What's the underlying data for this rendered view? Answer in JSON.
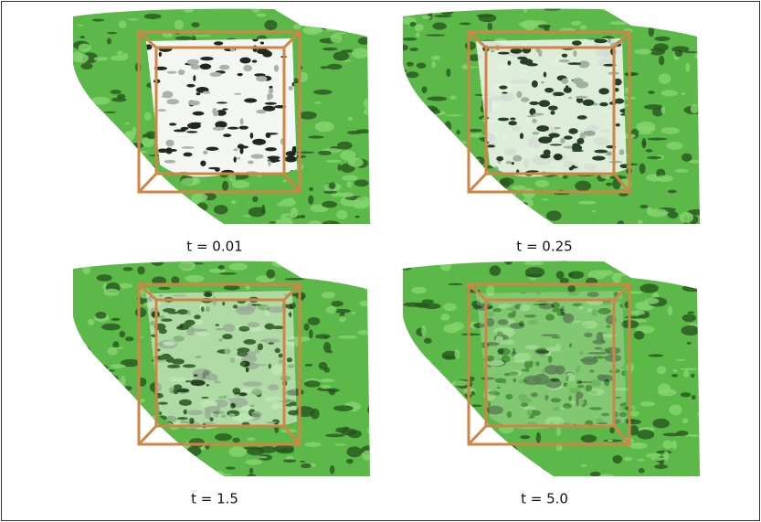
{
  "panels": [
    {
      "caption": "t = 0.01"
    },
    {
      "caption": "t = 0.25"
    },
    {
      "caption": "t = 1.5"
    },
    {
      "caption": "t = 5.0"
    }
  ]
}
